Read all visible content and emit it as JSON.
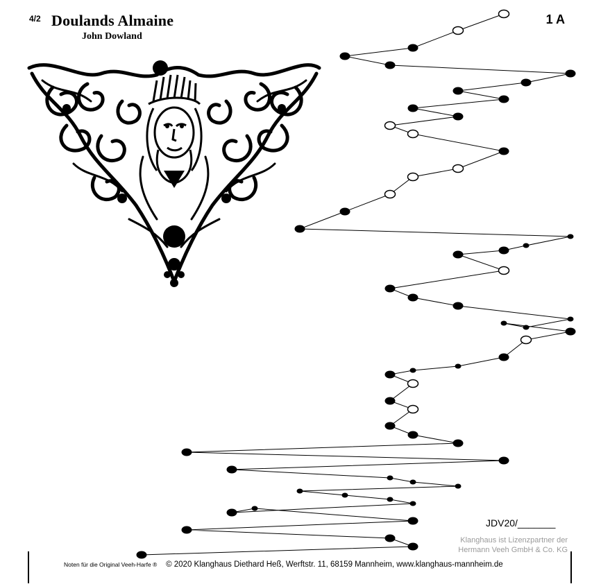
{
  "header": {
    "meter": "4/2",
    "title": "Doulands Almaine",
    "composer": "John Dowland",
    "code": "1 A"
  },
  "sheet": {
    "doc_number": "JDV20/_______",
    "partner_line1": "Klanghaus ist Lizenzpartner der",
    "partner_line2": "Hermann Veeh GmbH & Co. KG"
  },
  "footer": {
    "small_text": "Noten für die Original Veeh-Harfe ®",
    "copyright": "© 2020 Klanghaus Diethard Heß, Werftstr. 11, 68159 Mannheim, www.klanghaus-mannheim.de"
  },
  "ornament": {
    "icon": "baroque-face-ornament-icon"
  },
  "colors": {
    "ink": "#000000",
    "partner_gray": "#9a9a9a",
    "background": "#ffffff"
  },
  "notes": [
    {
      "type": "open",
      "size": "medium"
    },
    {
      "type": "open",
      "size": "medium"
    },
    {
      "type": "filled",
      "size": "medium"
    },
    {
      "type": "filled",
      "size": "medium"
    },
    {
      "type": "filled",
      "size": "medium"
    },
    {
      "type": "filled",
      "size": "medium"
    },
    {
      "type": "filled",
      "size": "medium"
    },
    {
      "type": "filled",
      "size": "medium"
    },
    {
      "type": "filled",
      "size": "medium"
    },
    {
      "type": "filled",
      "size": "medium"
    },
    {
      "type": "filled",
      "size": "medium"
    },
    {
      "type": "open",
      "size": "medium"
    },
    {
      "type": "open",
      "size": "medium"
    },
    {
      "type": "filled",
      "size": "medium"
    },
    {
      "type": "open",
      "size": "medium"
    },
    {
      "type": "open",
      "size": "medium"
    },
    {
      "type": "open",
      "size": "medium"
    },
    {
      "type": "filled",
      "size": "medium"
    },
    {
      "type": "filled",
      "size": "medium"
    },
    {
      "type": "filled",
      "size": "small"
    },
    {
      "type": "filled",
      "size": "small"
    },
    {
      "type": "filled",
      "size": "medium"
    },
    {
      "type": "filled",
      "size": "medium"
    },
    {
      "type": "open",
      "size": "medium"
    },
    {
      "type": "filled",
      "size": "medium"
    },
    {
      "type": "filled",
      "size": "medium"
    },
    {
      "type": "filled",
      "size": "medium"
    },
    {
      "type": "filled",
      "size": "small"
    },
    {
      "type": "filled",
      "size": "small"
    },
    {
      "type": "filled",
      "size": "small"
    },
    {
      "type": "filled",
      "size": "medium"
    },
    {
      "type": "open",
      "size": "medium"
    },
    {
      "type": "filled",
      "size": "medium"
    },
    {
      "type": "filled",
      "size": "small"
    },
    {
      "type": "filled",
      "size": "small"
    },
    {
      "type": "filled",
      "size": "medium"
    },
    {
      "type": "open",
      "size": "medium"
    },
    {
      "type": "filled",
      "size": "medium"
    },
    {
      "type": "open",
      "size": "medium"
    },
    {
      "type": "filled",
      "size": "medium"
    },
    {
      "type": "filled",
      "size": "medium"
    },
    {
      "type": "filled",
      "size": "medium"
    },
    {
      "type": "filled",
      "size": "medium"
    },
    {
      "type": "filled",
      "size": "medium"
    },
    {
      "type": "filled",
      "size": "medium"
    },
    {
      "type": "filled",
      "size": "small"
    },
    {
      "type": "filled",
      "size": "small"
    },
    {
      "type": "filled",
      "size": "small"
    },
    {
      "type": "filled",
      "size": "small"
    },
    {
      "type": "filled",
      "size": "small"
    },
    {
      "type": "filled",
      "size": "small"
    },
    {
      "type": "filled",
      "size": "small"
    },
    {
      "type": "filled",
      "size": "medium"
    },
    {
      "type": "filled",
      "size": "small"
    },
    {
      "type": "filled",
      "size": "medium"
    },
    {
      "type": "filled",
      "size": "medium"
    },
    {
      "type": "filled",
      "size": "medium"
    },
    {
      "type": "filled",
      "size": "medium"
    },
    {
      "type": "filled",
      "size": "medium"
    }
  ]
}
